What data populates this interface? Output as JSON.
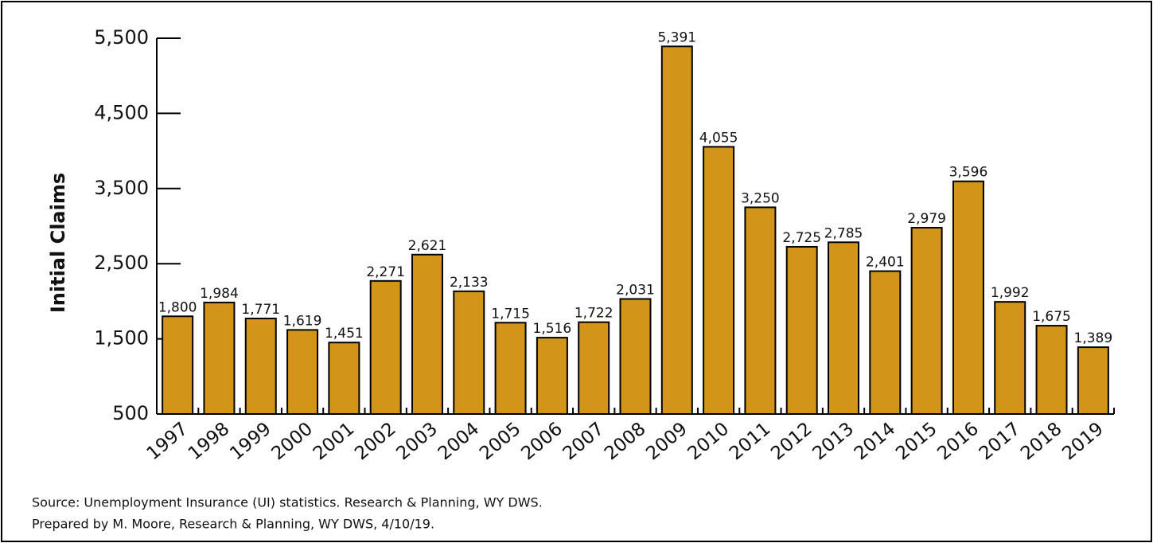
{
  "chart_data": {
    "type": "bar",
    "y_axis_label": "Initial Claims",
    "categories": [
      "1997",
      "1998",
      "1999",
      "2000",
      "2001",
      "2002",
      "2003",
      "2004",
      "2005",
      "2006",
      "2007",
      "2008",
      "2009",
      "2010",
      "2011",
      "2012",
      "2013",
      "2014",
      "2015",
      "2016",
      "2017",
      "2018",
      "2019"
    ],
    "values": [
      1800,
      1984,
      1771,
      1619,
      1451,
      2271,
      2621,
      2133,
      1715,
      1516,
      1722,
      2031,
      5391,
      4055,
      3250,
      2725,
      2785,
      2401,
      2979,
      3596,
      1992,
      1675,
      1389
    ],
    "value_labels": [
      "1,800",
      "1,984",
      "1,771",
      "1,619",
      "1,451",
      "2,271",
      "2,621",
      "2,133",
      "1,715",
      "1,516",
      "1,722",
      "2,031",
      "5,391",
      "4,055",
      "3,250",
      "2,725",
      "2,785",
      "2,401",
      "2,979",
      "3,596",
      "1,992",
      "1,675",
      "1,389"
    ],
    "color": "#d29419",
    "ylim": [
      500,
      5500
    ],
    "yticks": [
      500,
      {
        "value": 1500,
        "label": "1,500"
      },
      {
        "value": 2500,
        "label": "2,500"
      },
      {
        "value": 3500,
        "label": "3,500"
      },
      {
        "value": 4500,
        "label": "4,500"
      },
      {
        "value": 5500,
        "label": "5,500"
      }
    ],
    "notes": [
      "Source: Unemployment Insurance (UI) statistics. Research & Planning, WY DWS.",
      "Prepared by M. Moore, Research & Planning, WY DWS, 4/10/19."
    ]
  }
}
